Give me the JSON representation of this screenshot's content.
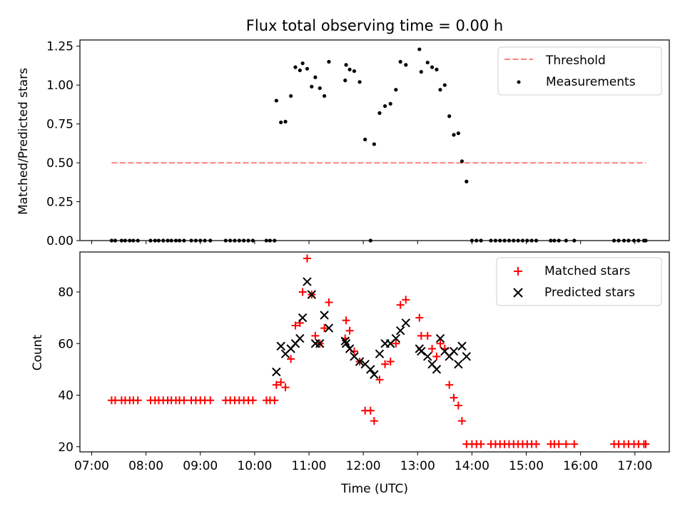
{
  "chart_data": {
    "type": "scatter",
    "title": "Flux total observing time = 0.00 h",
    "xlabel": "Time (UTC)",
    "x_ticks": [
      "07:00",
      "08:00",
      "09:00",
      "10:00",
      "11:00",
      "12:00",
      "13:00",
      "14:00",
      "15:00",
      "16:00",
      "17:00"
    ],
    "colors": {
      "threshold": "#ff8080",
      "measurements": "#000000",
      "matched": "#ff0000",
      "predicted": "#000000"
    },
    "top": {
      "ylabel": "Matched/Predicted stars",
      "ylim": [
        0,
        1.29
      ],
      "y_ticks": [
        "0.00",
        "0.25",
        "0.50",
        "0.75",
        "1.00",
        "1.25"
      ],
      "legend_position": "upper right",
      "threshold": {
        "name": "Threshold",
        "value": 0.5,
        "x_start": "07:22",
        "x_end": "17:12"
      },
      "measurements": {
        "name": "Measurements",
        "points": [
          [
            "07:22",
            0
          ],
          [
            "07:26",
            0
          ],
          [
            "07:33",
            0
          ],
          [
            "07:37",
            0
          ],
          [
            "07:42",
            0
          ],
          [
            "07:46",
            0
          ],
          [
            "07:51",
            0
          ],
          [
            "08:05",
            0
          ],
          [
            "08:10",
            0
          ],
          [
            "08:14",
            0
          ],
          [
            "08:19",
            0
          ],
          [
            "08:24",
            0
          ],
          [
            "08:28",
            0
          ],
          [
            "08:33",
            0
          ],
          [
            "08:37",
            0
          ],
          [
            "08:42",
            0
          ],
          [
            "08:50",
            0
          ],
          [
            "08:55",
            0
          ],
          [
            "09:00",
            0
          ],
          [
            "09:05",
            0
          ],
          [
            "09:11",
            0
          ],
          [
            "09:28",
            0
          ],
          [
            "09:33",
            0
          ],
          [
            "09:38",
            0
          ],
          [
            "09:43",
            0
          ],
          [
            "09:48",
            0
          ],
          [
            "09:53",
            0
          ],
          [
            "09:58",
            0
          ],
          [
            "10:13",
            0
          ],
          [
            "10:17",
            0
          ],
          [
            "10:22",
            0
          ],
          [
            "10:24",
            0.9
          ],
          [
            "10:29",
            0.76
          ],
          [
            "10:34",
            0.765
          ],
          [
            "10:40",
            0.93
          ],
          [
            "10:45",
            1.115
          ],
          [
            "10:50",
            1.095
          ],
          [
            "10:53",
            1.14
          ],
          [
            "10:58",
            1.105
          ],
          [
            "11:03",
            0.99
          ],
          [
            "11:07",
            1.05
          ],
          [
            "11:12",
            0.98
          ],
          [
            "11:17",
            0.93
          ],
          [
            "11:22",
            1.15
          ],
          [
            "11:40",
            1.03
          ],
          [
            "11:41",
            1.13
          ],
          [
            "11:45",
            1.1
          ],
          [
            "11:50",
            1.09
          ],
          [
            "11:56",
            1.02
          ],
          [
            "12:02",
            0.65
          ],
          [
            "12:08",
            0
          ],
          [
            "12:12",
            0.62
          ],
          [
            "12:18",
            0.82
          ],
          [
            "12:24",
            0.865
          ],
          [
            "12:30",
            0.88
          ],
          [
            "12:36",
            0.97
          ],
          [
            "12:41",
            1.15
          ],
          [
            "12:47",
            1.13
          ],
          [
            "13:02",
            1.23
          ],
          [
            "13:04",
            1.085
          ],
          [
            "13:11",
            1.145
          ],
          [
            "13:16",
            1.115
          ],
          [
            "13:21",
            1.1
          ],
          [
            "13:25",
            0.97
          ],
          [
            "13:30",
            1.0
          ],
          [
            "13:35",
            0.8
          ],
          [
            "13:40",
            0.68
          ],
          [
            "13:45",
            0.69
          ],
          [
            "13:49",
            0.51
          ],
          [
            "13:54",
            0.38
          ],
          [
            "14:00",
            0
          ],
          [
            "14:05",
            0
          ],
          [
            "14:10",
            0
          ],
          [
            "14:21",
            0
          ],
          [
            "14:26",
            0
          ],
          [
            "14:31",
            0
          ],
          [
            "14:36",
            0
          ],
          [
            "14:41",
            0
          ],
          [
            "14:46",
            0
          ],
          [
            "14:51",
            0
          ],
          [
            "14:56",
            0
          ],
          [
            "15:01",
            0
          ],
          [
            "15:06",
            0
          ],
          [
            "15:11",
            0
          ],
          [
            "15:27",
            0
          ],
          [
            "15:31",
            0
          ],
          [
            "15:36",
            0
          ],
          [
            "15:44",
            0
          ],
          [
            "15:53",
            0
          ],
          [
            "16:37",
            0
          ],
          [
            "16:42",
            0
          ],
          [
            "16:48",
            0
          ],
          [
            "16:53",
            0
          ],
          [
            "16:59",
            0
          ],
          [
            "17:04",
            0
          ],
          [
            "17:10",
            0
          ],
          [
            "17:12",
            0
          ]
        ]
      }
    },
    "bottom": {
      "ylabel": "Count",
      "ylim": [
        18,
        95.5
      ],
      "y_ticks": [
        "20",
        "40",
        "60",
        "80"
      ],
      "legend_position": "upper right",
      "matched": {
        "name": "Matched stars",
        "points": [
          [
            "07:22",
            38
          ],
          [
            "07:26",
            38
          ],
          [
            "07:33",
            38
          ],
          [
            "07:37",
            38
          ],
          [
            "07:42",
            38
          ],
          [
            "07:46",
            38
          ],
          [
            "07:51",
            38
          ],
          [
            "08:05",
            38
          ],
          [
            "08:10",
            38
          ],
          [
            "08:14",
            38
          ],
          [
            "08:19",
            38
          ],
          [
            "08:24",
            38
          ],
          [
            "08:28",
            38
          ],
          [
            "08:33",
            38
          ],
          [
            "08:37",
            38
          ],
          [
            "08:42",
            38
          ],
          [
            "08:50",
            38
          ],
          [
            "08:55",
            38
          ],
          [
            "09:00",
            38
          ],
          [
            "09:05",
            38
          ],
          [
            "09:11",
            38
          ],
          [
            "09:28",
            38
          ],
          [
            "09:33",
            38
          ],
          [
            "09:38",
            38
          ],
          [
            "09:43",
            38
          ],
          [
            "09:48",
            38
          ],
          [
            "09:53",
            38
          ],
          [
            "09:58",
            38
          ],
          [
            "10:13",
            38
          ],
          [
            "10:17",
            38
          ],
          [
            "10:22",
            38
          ],
          [
            "10:24",
            44
          ],
          [
            "10:29",
            45
          ],
          [
            "10:34",
            43
          ],
          [
            "10:40",
            54
          ],
          [
            "10:45",
            67
          ],
          [
            "10:50",
            68
          ],
          [
            "10:53",
            80
          ],
          [
            "10:58",
            93
          ],
          [
            "11:03",
            79
          ],
          [
            "11:07",
            63
          ],
          [
            "11:12",
            60
          ],
          [
            "11:17",
            66
          ],
          [
            "11:22",
            76
          ],
          [
            "11:40",
            62
          ],
          [
            "11:41",
            69
          ],
          [
            "11:45",
            65
          ],
          [
            "11:50",
            57
          ],
          [
            "11:56",
            53
          ],
          [
            "12:02",
            34
          ],
          [
            "12:08",
            34
          ],
          [
            "12:12",
            30
          ],
          [
            "12:18",
            46
          ],
          [
            "12:24",
            52
          ],
          [
            "12:30",
            53
          ],
          [
            "12:36",
            60
          ],
          [
            "12:41",
            75
          ],
          [
            "12:47",
            77
          ],
          [
            "13:02",
            70
          ],
          [
            "13:04",
            63
          ],
          [
            "13:11",
            63
          ],
          [
            "13:16",
            58
          ],
          [
            "13:21",
            55
          ],
          [
            "13:25",
            60
          ],
          [
            "13:30",
            58
          ],
          [
            "13:35",
            44
          ],
          [
            "13:40",
            39
          ],
          [
            "13:45",
            36
          ],
          [
            "13:49",
            30
          ],
          [
            "13:54",
            21
          ],
          [
            "14:00",
            21
          ],
          [
            "14:05",
            21
          ],
          [
            "14:10",
            21
          ],
          [
            "14:21",
            21
          ],
          [
            "14:26",
            21
          ],
          [
            "14:31",
            21
          ],
          [
            "14:36",
            21
          ],
          [
            "14:41",
            21
          ],
          [
            "14:46",
            21
          ],
          [
            "14:51",
            21
          ],
          [
            "14:56",
            21
          ],
          [
            "15:01",
            21
          ],
          [
            "15:06",
            21
          ],
          [
            "15:11",
            21
          ],
          [
            "15:27",
            21
          ],
          [
            "15:31",
            21
          ],
          [
            "15:36",
            21
          ],
          [
            "15:44",
            21
          ],
          [
            "15:53",
            21
          ],
          [
            "16:37",
            21
          ],
          [
            "16:42",
            21
          ],
          [
            "16:48",
            21
          ],
          [
            "16:53",
            21
          ],
          [
            "16:59",
            21
          ],
          [
            "17:04",
            21
          ],
          [
            "17:10",
            21
          ],
          [
            "17:12",
            21
          ]
        ]
      },
      "predicted": {
        "name": "Predicted stars",
        "points": [
          [
            "10:24",
            49
          ],
          [
            "10:29",
            59
          ],
          [
            "10:34",
            56
          ],
          [
            "10:40",
            58
          ],
          [
            "10:45",
            60
          ],
          [
            "10:50",
            62
          ],
          [
            "10:53",
            70
          ],
          [
            "10:58",
            84
          ],
          [
            "11:03",
            79
          ],
          [
            "11:07",
            60
          ],
          [
            "11:12",
            60
          ],
          [
            "11:17",
            71
          ],
          [
            "11:22",
            66
          ],
          [
            "11:40",
            61
          ],
          [
            "11:41",
            60
          ],
          [
            "11:45",
            58
          ],
          [
            "11:50",
            55
          ],
          [
            "11:56",
            53
          ],
          [
            "12:02",
            52
          ],
          [
            "12:08",
            50
          ],
          [
            "12:12",
            48
          ],
          [
            "12:18",
            56
          ],
          [
            "12:24",
            60
          ],
          [
            "12:30",
            60
          ],
          [
            "12:36",
            62
          ],
          [
            "12:41",
            65
          ],
          [
            "12:47",
            68
          ],
          [
            "13:02",
            58
          ],
          [
            "13:04",
            57
          ],
          [
            "13:11",
            55
          ],
          [
            "13:16",
            52
          ],
          [
            "13:21",
            50
          ],
          [
            "13:25",
            62
          ],
          [
            "13:30",
            57
          ],
          [
            "13:35",
            55
          ],
          [
            "13:40",
            57
          ],
          [
            "13:45",
            52
          ],
          [
            "13:49",
            59
          ],
          [
            "13:54",
            55
          ]
        ]
      }
    }
  }
}
